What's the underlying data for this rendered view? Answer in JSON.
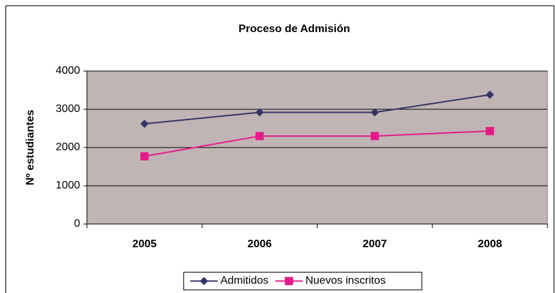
{
  "chart_data": {
    "type": "line",
    "title": "Proceso de Admisión",
    "y_label": "Nº estudiantes",
    "categories": [
      "2005",
      "2006",
      "2007",
      "2008"
    ],
    "series": [
      {
        "name": "Admitidos",
        "color": "#333366",
        "marker": "diamond",
        "values": [
          2620,
          2920,
          2920,
          3380
        ]
      },
      {
        "name": "Nuevos inscritos",
        "color": "#e6198a",
        "marker": "square",
        "values": [
          1770,
          2300,
          2300,
          2430
        ]
      }
    ],
    "ylim": [
      0,
      4000
    ],
    "yticks": [
      0,
      1000,
      2000,
      3000,
      4000
    ],
    "grid": true,
    "legend": "bottom"
  }
}
